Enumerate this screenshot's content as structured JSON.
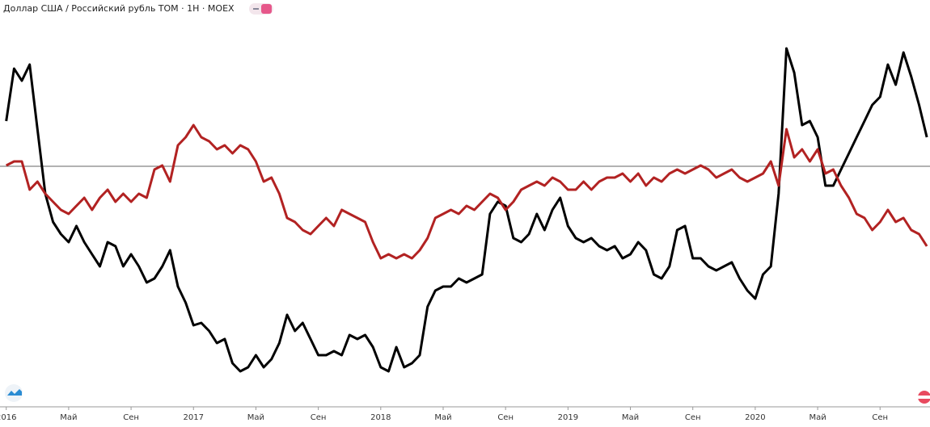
{
  "chart_data": {
    "type": "line",
    "title": "Доллар США / Российский рубль TOM · 1H · MOEX",
    "x": [
      0,
      0.5,
      1,
      1.5,
      2,
      2.5,
      3,
      3.5,
      4,
      4.5,
      5,
      5.5,
      6,
      6.5,
      7,
      7.5,
      8,
      8.5,
      9,
      9.5,
      10,
      10.5,
      11,
      11.5,
      12,
      12.5,
      13,
      13.5,
      14,
      14.5,
      15,
      15.5,
      16,
      16.5,
      17,
      17.5,
      18,
      18.5,
      19,
      19.5,
      20,
      20.5,
      21,
      21.5,
      22,
      22.5,
      23,
      23.5,
      24,
      24.5,
      25,
      25.5,
      26,
      26.5,
      27,
      27.5,
      28,
      28.5,
      29,
      29.5,
      30,
      30.5,
      31,
      31.5,
      32,
      32.5,
      33,
      33.5,
      34,
      34.5,
      35,
      35.5,
      36,
      36.5,
      37,
      37.5,
      38,
      38.5,
      39,
      39.5,
      40,
      40.5,
      41,
      41.5,
      42,
      42.5,
      43,
      43.5,
      44,
      44.5,
      45,
      45.5,
      46,
      46.5,
      47,
      47.5,
      48,
      48.5,
      49,
      49.5,
      50,
      50.5,
      51,
      51.5,
      52,
      52.5,
      53,
      53.5,
      54,
      54.5,
      55,
      55.5,
      56,
      56.5,
      57,
      57.5,
      58,
      58.5,
      59
    ],
    "series": [
      {
        "color": "#000000",
        "values": [
          350,
          415,
          400,
          420,
          340,
          260,
          225,
          210,
          200,
          220,
          200,
          185,
          170,
          200,
          195,
          170,
          185,
          170,
          150,
          155,
          170,
          190,
          145,
          125,
          97,
          100,
          90,
          75,
          80,
          50,
          40,
          45,
          60,
          45,
          55,
          75,
          110,
          90,
          100,
          80,
          60,
          60,
          65,
          60,
          85,
          80,
          85,
          70,
          45,
          40,
          70,
          45,
          50,
          60,
          120,
          140,
          145,
          145,
          155,
          150,
          155,
          160,
          235,
          250,
          245,
          205,
          200,
          210,
          235,
          215,
          240,
          255,
          220,
          205,
          200,
          205,
          195,
          190,
          195,
          180,
          185,
          200,
          190,
          160,
          155,
          170,
          215,
          220,
          180,
          180,
          170,
          165,
          170,
          175,
          155,
          140,
          130,
          160,
          170,
          260,
          440,
          410,
          345,
          350,
          330,
          270,
          270,
          290,
          310,
          330,
          350,
          370,
          380,
          420,
          395,
          435,
          405,
          370,
          330
        ]
      },
      {
        "color": "#b22222",
        "values": [
          295,
          300,
          300,
          265,
          275,
          260,
          250,
          240,
          235,
          245,
          255,
          240,
          255,
          265,
          250,
          260,
          250,
          260,
          255,
          290,
          295,
          275,
          320,
          330,
          345,
          330,
          325,
          315,
          320,
          310,
          320,
          315,
          300,
          275,
          280,
          260,
          230,
          225,
          215,
          210,
          220,
          230,
          220,
          240,
          235,
          230,
          225,
          200,
          180,
          185,
          180,
          185,
          180,
          190,
          205,
          230,
          235,
          240,
          235,
          245,
          240,
          250,
          260,
          255,
          240,
          250,
          265,
          270,
          275,
          270,
          280,
          275,
          265,
          265,
          275,
          265,
          275,
          280,
          280,
          285,
          275,
          285,
          270,
          280,
          275,
          285,
          290,
          285,
          290,
          295,
          290,
          280,
          285,
          290,
          280,
          275,
          280,
          285,
          300,
          270,
          340,
          305,
          315,
          300,
          315,
          285,
          290,
          270,
          255,
          235,
          230,
          215,
          225,
          240,
          225,
          230,
          215,
          210,
          195
        ]
      }
    ],
    "reference_line": 294,
    "xlim": [
      -0.4,
      59.2
    ],
    "ylim": [
      0,
      470
    ],
    "xticks": [
      {
        "value": 0,
        "label": "2016"
      },
      {
        "value": 4,
        "label": "Май"
      },
      {
        "value": 8,
        "label": "Сен"
      },
      {
        "value": 12,
        "label": "2017"
      },
      {
        "value": 16,
        "label": "Май"
      },
      {
        "value": 20,
        "label": "Сен"
      },
      {
        "value": 24,
        "label": "2018"
      },
      {
        "value": 28,
        "label": "Май"
      },
      {
        "value": 32,
        "label": "Сен"
      },
      {
        "value": 36,
        "label": "2019"
      },
      {
        "value": 40,
        "label": "Май"
      },
      {
        "value": 44,
        "label": "Сен"
      },
      {
        "value": 48,
        "label": "2020"
      },
      {
        "value": 52,
        "label": "Май"
      },
      {
        "value": 56,
        "label": "Сен"
      }
    ]
  }
}
